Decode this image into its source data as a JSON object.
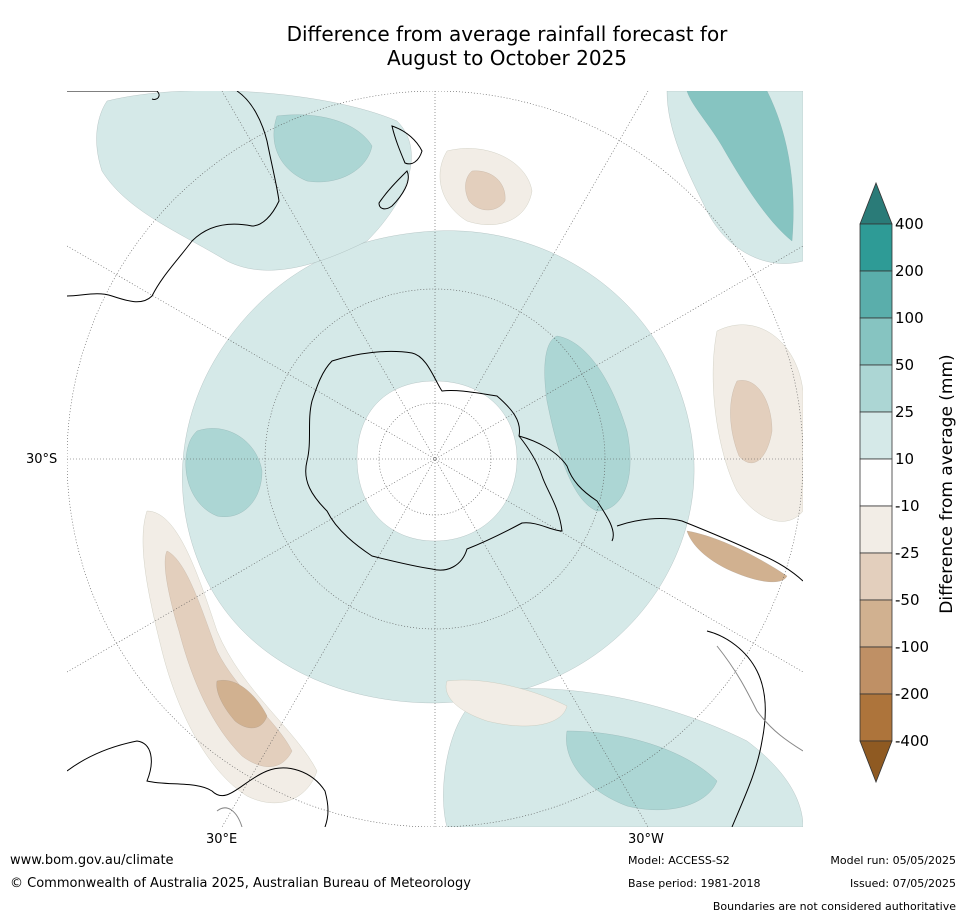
{
  "title": {
    "line1": "Difference from average rainfall forecast for",
    "line2": "August to October 2025"
  },
  "map": {
    "projection": "south-polar-stereographic",
    "lat_label": "30°S",
    "lon_labels": [
      "30°E",
      "30°W"
    ],
    "land_outline_color": "#000000",
    "border_color": "#888888"
  },
  "legend": {
    "title": "Difference from average (mm)",
    "levels": [
      "400",
      "200",
      "100",
      "50",
      "25",
      "10",
      "-10",
      "-25",
      "-50",
      "-100",
      "-200",
      "-400"
    ],
    "colors": {
      "over": "#2a7b78",
      "c400": "#2e9b96",
      "c200": "#5aaeab",
      "c100": "#86c4c1",
      "c50": "#acd6d4",
      "c25": "#d5e9e8",
      "c10": "#ffffff",
      "cm10": "#f2ede6",
      "cm25": "#e3cfbd",
      "cm50": "#d1b190",
      "cm100": "#bf9065",
      "cm200": "#ad743b",
      "under": "#8f5a22"
    }
  },
  "footer": {
    "url": "www.bom.gov.au/climate",
    "copyright": "© Commonwealth of Australia 2025, Australian Bureau of Meteorology",
    "model": "Model: ACCESS-S2",
    "base_period": "Base period: 1981-2018",
    "model_run": "Model run: 05/05/2025",
    "issued": "Issued: 07/05/2025",
    "disclaimer": "Boundaries are not considered authoritative"
  }
}
